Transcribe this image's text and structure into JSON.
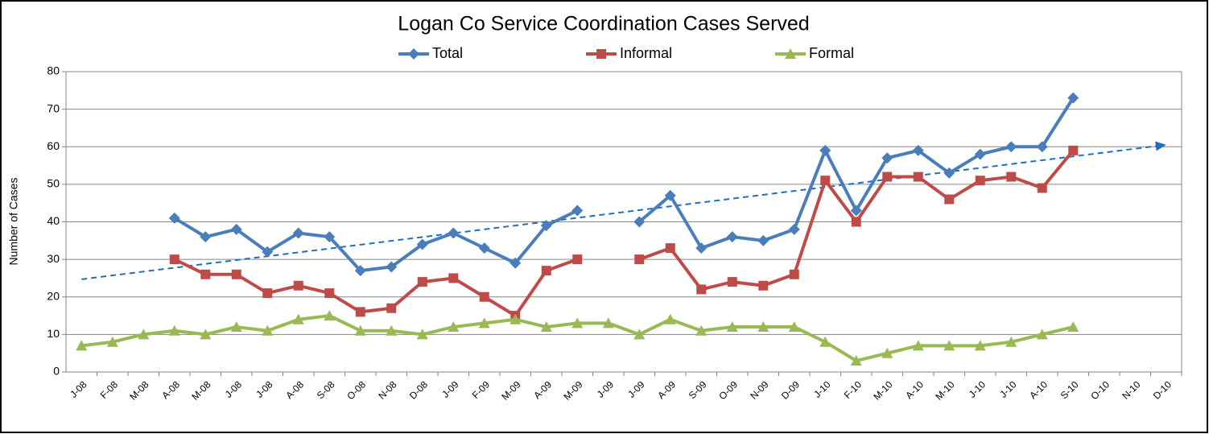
{
  "chart_data": {
    "type": "line",
    "title": "Logan Co Service Coordination Cases Served",
    "y_label": "Number of Cases",
    "categories": [
      "J-08",
      "F-08",
      "M-08",
      "A-08",
      "M-08",
      "J-08",
      "J-08",
      "A-08",
      "S-08",
      "O-08",
      "N-08",
      "D-08",
      "J-09",
      "F-09",
      "M-09",
      "A-09",
      "M-09",
      "J-09",
      "J-09",
      "A-09",
      "S-09",
      "O-09",
      "N-09",
      "D-09",
      "J-10",
      "F-10",
      "M-10",
      "A-10",
      "M-10",
      "J-10",
      "J-10",
      "A-10",
      "S-10",
      "O-10",
      "N-10",
      "D-10"
    ],
    "series": [
      {
        "name": "Total",
        "color": "#4a7ebb",
        "marker": "diamond",
        "values": [
          null,
          null,
          null,
          41,
          36,
          38,
          32,
          37,
          36,
          27,
          28,
          34,
          37,
          33,
          29,
          39,
          43,
          null,
          40,
          47,
          33,
          36,
          35,
          38,
          59,
          43,
          57,
          59,
          53,
          58,
          60,
          60,
          73,
          null,
          null,
          null
        ]
      },
      {
        "name": "Informal",
        "color": "#be4b48",
        "marker": "square",
        "values": [
          null,
          null,
          null,
          30,
          26,
          26,
          21,
          23,
          21,
          16,
          17,
          24,
          25,
          20,
          15,
          27,
          30,
          null,
          30,
          33,
          22,
          24,
          23,
          26,
          51,
          40,
          52,
          52,
          46,
          51,
          52,
          49,
          59,
          null,
          null,
          null
        ]
      },
      {
        "name": "Formal",
        "color": "#98b954",
        "marker": "triangle",
        "values": [
          7,
          8,
          10,
          11,
          10,
          12,
          11,
          14,
          15,
          11,
          11,
          10,
          12,
          13,
          14,
          12,
          13,
          13,
          10,
          14,
          11,
          12,
          12,
          12,
          8,
          3,
          5,
          7,
          7,
          7,
          8,
          10,
          12,
          null,
          null,
          null
        ]
      }
    ],
    "trendline": {
      "values": [
        24.7,
        60.5
      ],
      "color": "#1f6fbf",
      "style": "dashed"
    },
    "ylim": [
      0,
      80
    ],
    "yticks": [
      0,
      10,
      20,
      30,
      40,
      50,
      60,
      70,
      80
    ],
    "grid": true,
    "legend": "top"
  }
}
